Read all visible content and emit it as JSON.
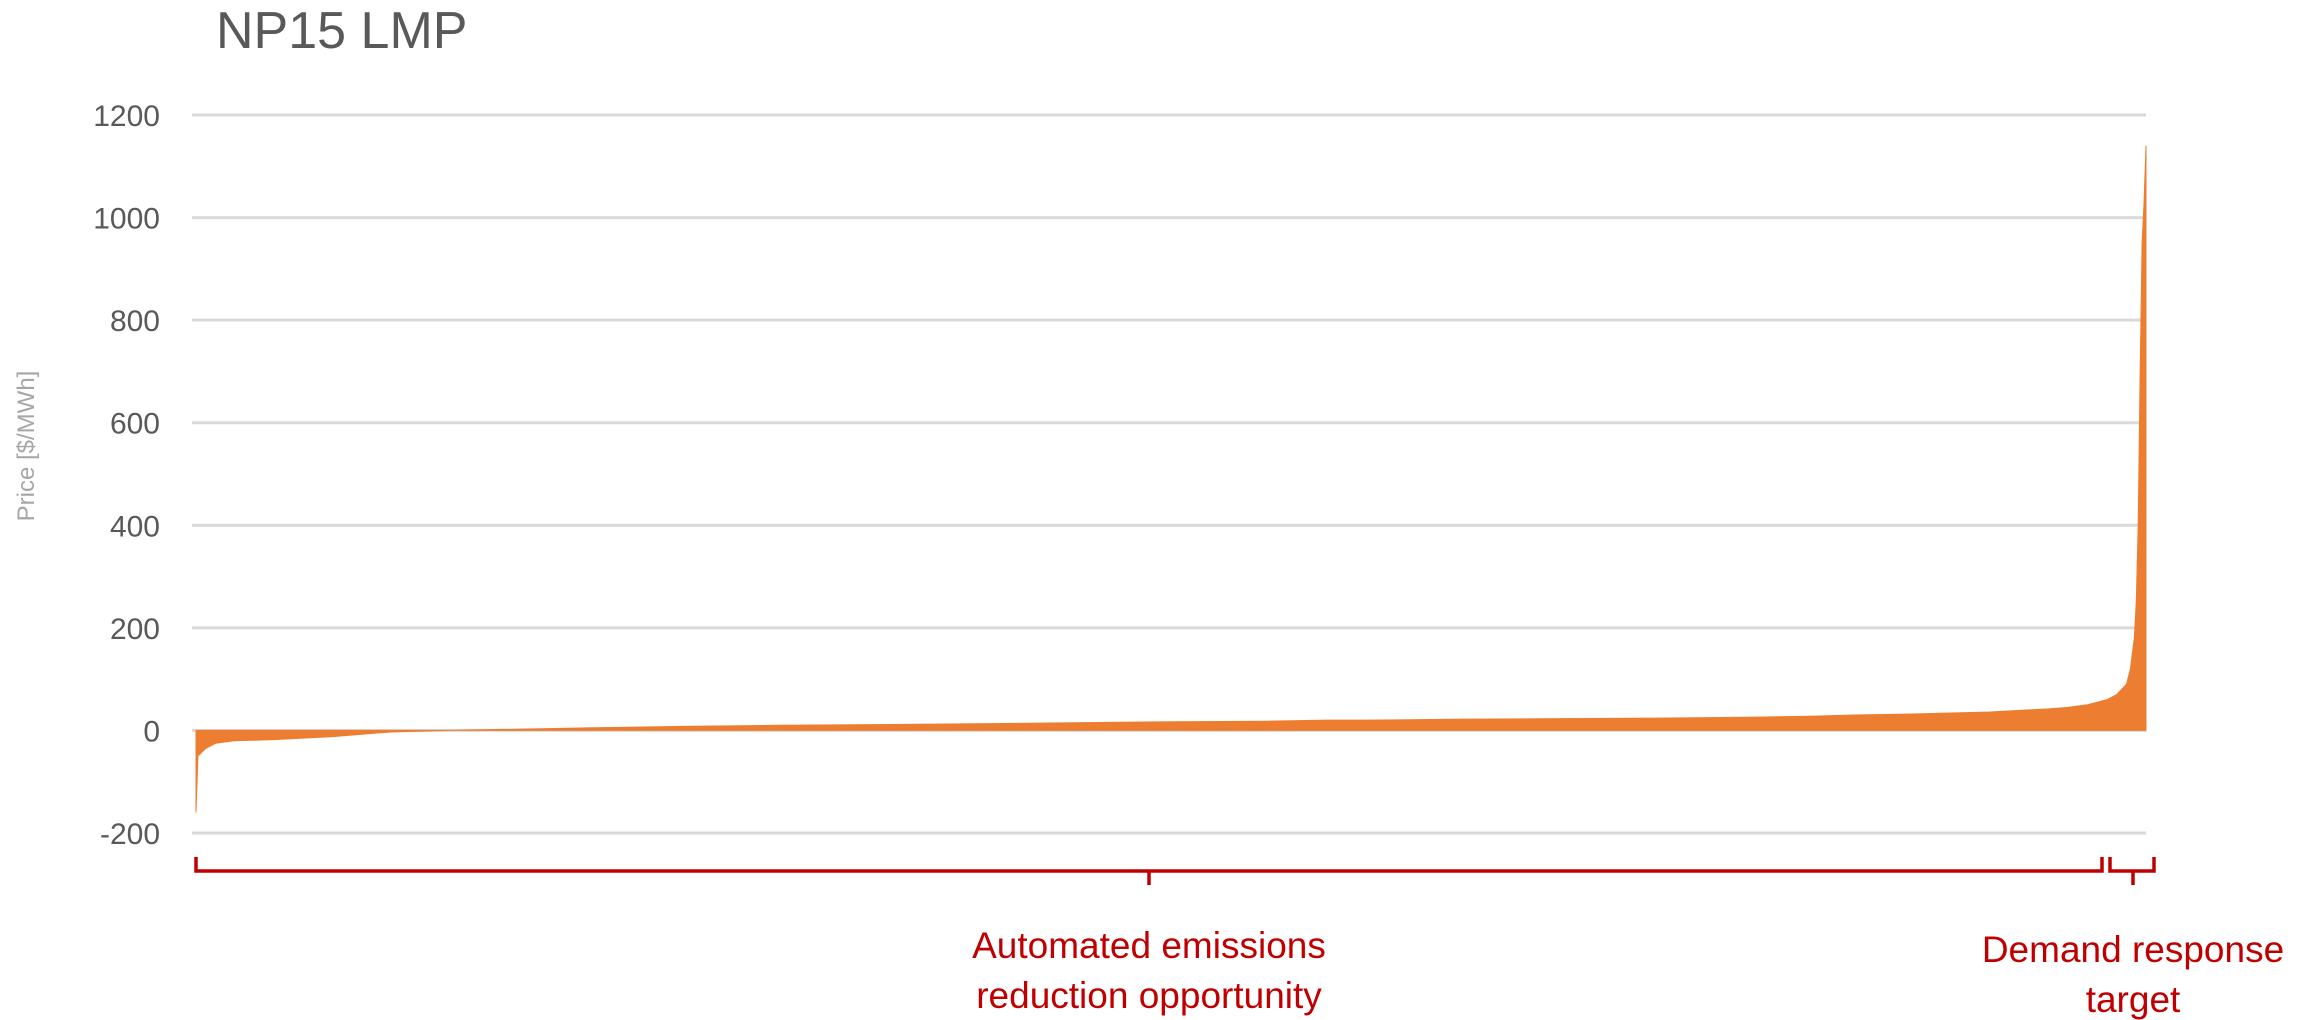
{
  "chart_data": {
    "type": "area",
    "title": "NP15 LMP",
    "xlabel": "",
    "ylabel": "Price [$/MWh]",
    "ylim": [
      -200,
      1200
    ],
    "yticks": [
      1200,
      1000,
      800,
      600,
      400,
      200,
      0,
      -200
    ],
    "grid": true,
    "legend": "none",
    "series": [
      {
        "color": "#ed7d31",
        "sorted": "ascending",
        "x_percentile": [
          0,
          0.1,
          0.5,
          1,
          2,
          4,
          7,
          10,
          13,
          20,
          25,
          30,
          37,
          40,
          45,
          50,
          55,
          58,
          60,
          65,
          70,
          75,
          80,
          83,
          85,
          88,
          90,
          92,
          94,
          95,
          96,
          97,
          97.5,
          98,
          98.5,
          99,
          99.2,
          99.4,
          99.5,
          99.6,
          99.7,
          99.8,
          99.9,
          100
        ],
        "values": [
          -160,
          -50,
          -35,
          -25,
          -20,
          -18,
          -12,
          -3,
          0,
          5,
          8,
          10,
          12,
          13,
          15,
          17,
          18,
          20,
          20,
          22,
          23,
          24,
          26,
          28,
          30,
          32,
          34,
          36,
          40,
          42,
          45,
          50,
          55,
          60,
          70,
          90,
          120,
          180,
          250,
          400,
          700,
          950,
          1030,
          1140
        ]
      }
    ],
    "annotations": [
      {
        "text_lines": [
          "Automated emissions",
          "reduction opportunity"
        ]
      },
      {
        "text_lines": [
          "Demand response",
          "target"
        ]
      }
    ]
  }
}
